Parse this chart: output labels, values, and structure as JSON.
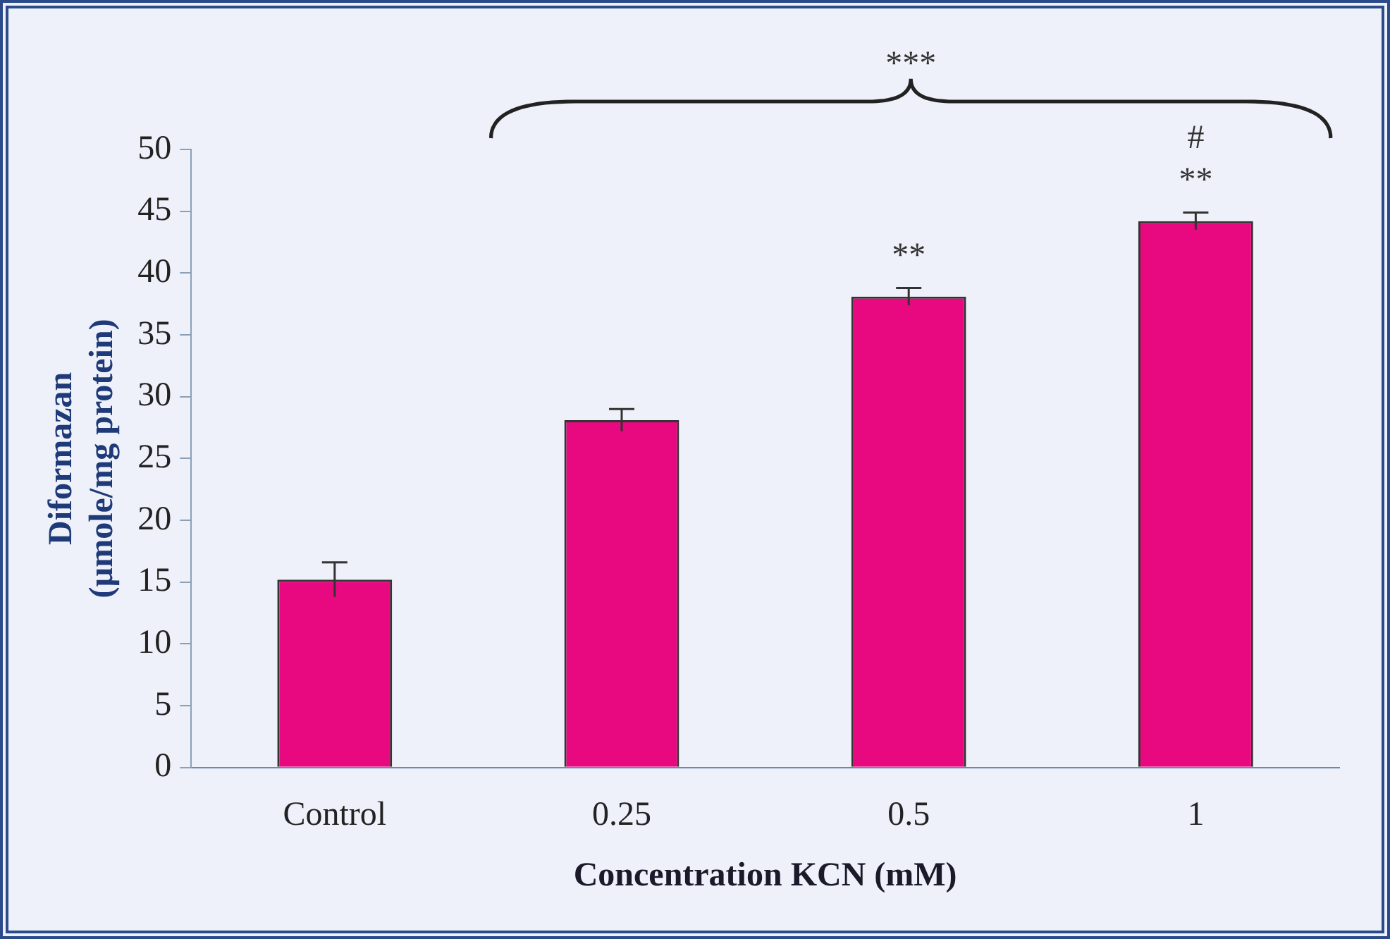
{
  "chart_data": {
    "type": "bar",
    "xlabel": "Concentration KCN (mM)",
    "ylabel": "Diformazan\n(µmole/mg protein)",
    "categories": [
      "Control",
      "0.25",
      "0.5",
      "1"
    ],
    "values": [
      15.2,
      28.1,
      38.1,
      44.2
    ],
    "errors": [
      1.4,
      0.9,
      0.7,
      0.7
    ],
    "color": "#e8087f",
    "ylim": [
      0,
      50
    ],
    "yticks": [
      0,
      5,
      10,
      15,
      20,
      25,
      30,
      35,
      40,
      45,
      50
    ],
    "grid": false,
    "legend": false,
    "annotations": [
      "***",
      "**",
      "**",
      "#"
    ]
  }
}
